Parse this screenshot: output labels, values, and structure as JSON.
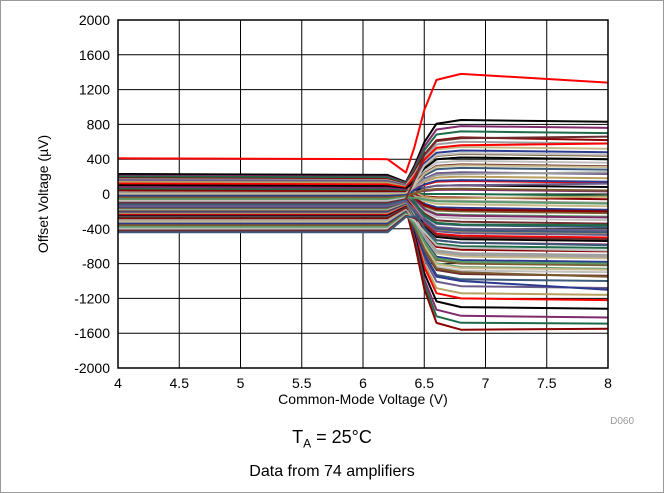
{
  "chart_data": {
    "type": "line",
    "xlabel": "Common-Mode Voltage (V)",
    "ylabel": "Offset Voltage (µV)",
    "xlim": [
      4,
      8
    ],
    "ylim": [
      -2000,
      2000
    ],
    "x_ticks": [
      "4",
      "4.5",
      "5",
      "5.5",
      "6",
      "6.5",
      "7",
      "7.5",
      "8"
    ],
    "y_ticks": [
      "2000",
      "1600",
      "1200",
      "800",
      "400",
      "0",
      "-400",
      "-800",
      "-1200",
      "-1600",
      "-2000"
    ],
    "grid": true,
    "legend": "none",
    "figure_code": "D060",
    "condition": {
      "symbol": "T",
      "subscript": "A",
      "rest": " = 25°C"
    },
    "note": "Data from 74 amplifiers",
    "series_colors": [
      "#ff0000",
      "#000000",
      "#7f2a6b",
      "#1e6b4a",
      "#8b0000",
      "#a0a0a0",
      "#c7b98a",
      "#2b3a8c",
      "#7a5a2e",
      "#5a9a6a",
      "#c0c0c0",
      "#6b2d2d",
      "#3c5a7a",
      "#6a5a8a",
      "#b8a060"
    ],
    "series": [
      {
        "name": "",
        "start": 410,
        "end": 1380,
        "end8": 1280
      },
      {
        "name": "",
        "start": 230,
        "end": 850,
        "end8": 830
      },
      {
        "name": "",
        "start": 210,
        "end": 780,
        "end8": 760
      },
      {
        "name": "",
        "start": 200,
        "end": 720,
        "end8": 700
      },
      {
        "name": "",
        "start": 180,
        "end": 650,
        "end8": 620
      },
      {
        "name": "",
        "start": 170,
        "end": 600,
        "end8": 580
      },
      {
        "name": "",
        "start": 150,
        "end": 540,
        "end8": 520
      },
      {
        "name": "",
        "start": 140,
        "end": 500,
        "end8": 480
      },
      {
        "name": "",
        "start": 130,
        "end": 460,
        "end8": 440
      },
      {
        "name": "",
        "start": 120,
        "end": 420,
        "end8": 400
      },
      {
        "name": "",
        "start": 110,
        "end": 380,
        "end8": 360
      },
      {
        "name": "",
        "start": 100,
        "end": 340,
        "end8": 320
      },
      {
        "name": "",
        "start": 90,
        "end": 300,
        "end8": 280
      },
      {
        "name": "",
        "start": 80,
        "end": 250,
        "end8": 230
      },
      {
        "name": "",
        "start": 70,
        "end": 200,
        "end8": 180
      },
      {
        "name": "",
        "start": 60,
        "end": 150,
        "end8": 130
      },
      {
        "name": "",
        "start": 50,
        "end": 100,
        "end8": 80
      },
      {
        "name": "",
        "start": 40,
        "end": 50,
        "end8": 30
      },
      {
        "name": "",
        "start": 30,
        "end": 0,
        "end8": -20
      },
      {
        "name": "",
        "start": 20,
        "end": -40,
        "end8": -60
      },
      {
        "name": "",
        "start": 10,
        "end": -80,
        "end8": -100
      },
      {
        "name": "",
        "start": 0,
        "end": -120,
        "end8": -140
      },
      {
        "name": "",
        "start": -10,
        "end": -160,
        "end8": -180
      },
      {
        "name": "",
        "start": -20,
        "end": -200,
        "end8": -220
      },
      {
        "name": "",
        "start": -30,
        "end": -240,
        "end8": -260
      },
      {
        "name": "",
        "start": -40,
        "end": -280,
        "end8": -300
      },
      {
        "name": "",
        "start": -50,
        "end": -320,
        "end8": -340
      },
      {
        "name": "",
        "start": -60,
        "end": -360,
        "end8": -380
      },
      {
        "name": "",
        "start": -70,
        "end": -400,
        "end8": -420
      },
      {
        "name": "",
        "start": -80,
        "end": -440,
        "end8": -460
      },
      {
        "name": "",
        "start": -90,
        "end": -480,
        "end8": -500
      },
      {
        "name": "",
        "start": -100,
        "end": -520,
        "end8": -540
      },
      {
        "name": "",
        "start": -110,
        "end": -560,
        "end8": -580
      },
      {
        "name": "",
        "start": -120,
        "end": -600,
        "end8": -620
      },
      {
        "name": "",
        "start": -130,
        "end": -640,
        "end8": -660
      },
      {
        "name": "",
        "start": -140,
        "end": -680,
        "end8": -700
      },
      {
        "name": "",
        "start": -150,
        "end": -720,
        "end8": -740
      },
      {
        "name": "",
        "start": -160,
        "end": -760,
        "end8": -780
      },
      {
        "name": "",
        "start": -170,
        "end": -800,
        "end8": -820
      },
      {
        "name": "",
        "start": -180,
        "end": -840,
        "end8": -860
      },
      {
        "name": "",
        "start": -190,
        "end": -880,
        "end8": -900
      },
      {
        "name": "",
        "start": -200,
        "end": -920,
        "end8": -940
      },
      {
        "name": "",
        "start": -210,
        "end": -980,
        "end8": -1000
      },
      {
        "name": "",
        "start": -220,
        "end": -1060,
        "end8": -1080
      },
      {
        "name": "",
        "start": -230,
        "end": -1140,
        "end8": -1160
      },
      {
        "name": "",
        "start": -240,
        "end": -1200,
        "end8": -1220
      },
      {
        "name": "",
        "start": -250,
        "end": -1300,
        "end8": -1320
      },
      {
        "name": "",
        "start": -260,
        "end": -1400,
        "end8": -1420
      },
      {
        "name": "",
        "start": -270,
        "end": -1480,
        "end8": -1490
      },
      {
        "name": "",
        "start": -280,
        "end": -1560,
        "end8": -1550
      },
      {
        "name": "",
        "start": -300,
        "end": -700,
        "end8": -720
      },
      {
        "name": "",
        "start": -320,
        "end": -850,
        "end8": -870
      },
      {
        "name": "",
        "start": -340,
        "end": -1000,
        "end8": -1100
      },
      {
        "name": "",
        "start": -360,
        "end": -900,
        "end8": -950
      },
      {
        "name": "",
        "start": -380,
        "end": -780,
        "end8": -800
      },
      {
        "name": "",
        "start": -400,
        "end": -620,
        "end8": -650
      },
      {
        "name": "",
        "start": -420,
        "end": -500,
        "end8": -520
      },
      {
        "name": "",
        "start": -440,
        "end": -420,
        "end8": -440
      },
      {
        "name": "",
        "start": 160,
        "end": 100,
        "end8": 120
      },
      {
        "name": "",
        "start": 140,
        "end": -50,
        "end8": -30
      },
      {
        "name": "",
        "start": 120,
        "end": 560,
        "end8": 580
      },
      {
        "name": "",
        "start": 100,
        "end": 420,
        "end8": 400
      },
      {
        "name": "",
        "start": 80,
        "end": -250,
        "end8": -270
      },
      {
        "name": "",
        "start": 60,
        "end": -350,
        "end8": -360
      },
      {
        "name": "",
        "start": 40,
        "end": -180,
        "end8": -200
      },
      {
        "name": "",
        "start": 20,
        "end": 230,
        "end8": 250
      },
      {
        "name": "",
        "start": 0,
        "end": 330,
        "end8": 310
      },
      {
        "name": "",
        "start": -20,
        "end": 160,
        "end8": 140
      },
      {
        "name": "",
        "start": -40,
        "end": 60,
        "end8": 40
      },
      {
        "name": "",
        "start": -60,
        "end": -90,
        "end8": -110
      },
      {
        "name": "",
        "start": -80,
        "end": 470,
        "end8": 450
      },
      {
        "name": "",
        "start": -100,
        "end": 640,
        "end8": 660
      },
      {
        "name": "",
        "start": -120,
        "end": -560,
        "end8": -590
      },
      {
        "name": "",
        "start": -140,
        "end": -450,
        "end8": -470
      }
    ]
  }
}
